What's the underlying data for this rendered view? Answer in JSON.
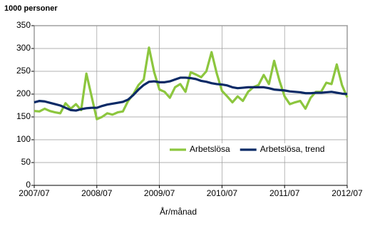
{
  "chart_data": {
    "type": "line",
    "y_label": "1000 personer",
    "x_label": "År/månad",
    "categories": [
      "2007/07",
      null,
      null,
      null,
      null,
      null,
      null,
      null,
      null,
      null,
      null,
      null,
      "2008/07",
      null,
      null,
      null,
      null,
      null,
      null,
      null,
      null,
      null,
      null,
      null,
      "2009/07",
      null,
      null,
      null,
      null,
      null,
      null,
      null,
      null,
      null,
      null,
      null,
      "2010/07",
      null,
      null,
      null,
      null,
      null,
      null,
      null,
      null,
      null,
      null,
      null,
      "2011/07",
      null,
      null,
      null,
      null,
      null,
      null,
      null,
      null,
      null,
      null,
      null,
      "2012/07"
    ],
    "series": [
      {
        "name": "Arbetslösa",
        "color": "#8cc63e",
        "values": [
          163,
          162,
          168,
          163,
          160,
          158,
          180,
          168,
          178,
          165,
          245,
          195,
          145,
          150,
          158,
          155,
          160,
          162,
          185,
          200,
          220,
          232,
          302,
          248,
          210,
          205,
          192,
          215,
          222,
          205,
          248,
          243,
          237,
          250,
          292,
          245,
          207,
          195,
          182,
          195,
          185,
          205,
          215,
          220,
          242,
          222,
          273,
          230,
          195,
          178,
          182,
          185,
          168,
          192,
          205,
          205,
          225,
          222,
          265,
          220,
          193
        ]
      },
      {
        "name": "Arbetslösa, trend",
        "color": "#0b2a66",
        "values": [
          182,
          185,
          184,
          181,
          178,
          175,
          170,
          165,
          164,
          167,
          169,
          170,
          170,
          174,
          177,
          179,
          181,
          183,
          188,
          198,
          210,
          220,
          227,
          228,
          226,
          226,
          228,
          232,
          236,
          236,
          235,
          233,
          229,
          227,
          224,
          222,
          221,
          219,
          215,
          213,
          214,
          215,
          215,
          215,
          215,
          213,
          210,
          209,
          208,
          206,
          205,
          204,
          202,
          202,
          203,
          203,
          204,
          205,
          203,
          201,
          200
        ]
      }
    ],
    "ylim": [
      0,
      350
    ],
    "yticks": [
      0,
      50,
      100,
      150,
      200,
      250,
      300,
      350
    ],
    "grid": true,
    "legend": "lower right"
  }
}
